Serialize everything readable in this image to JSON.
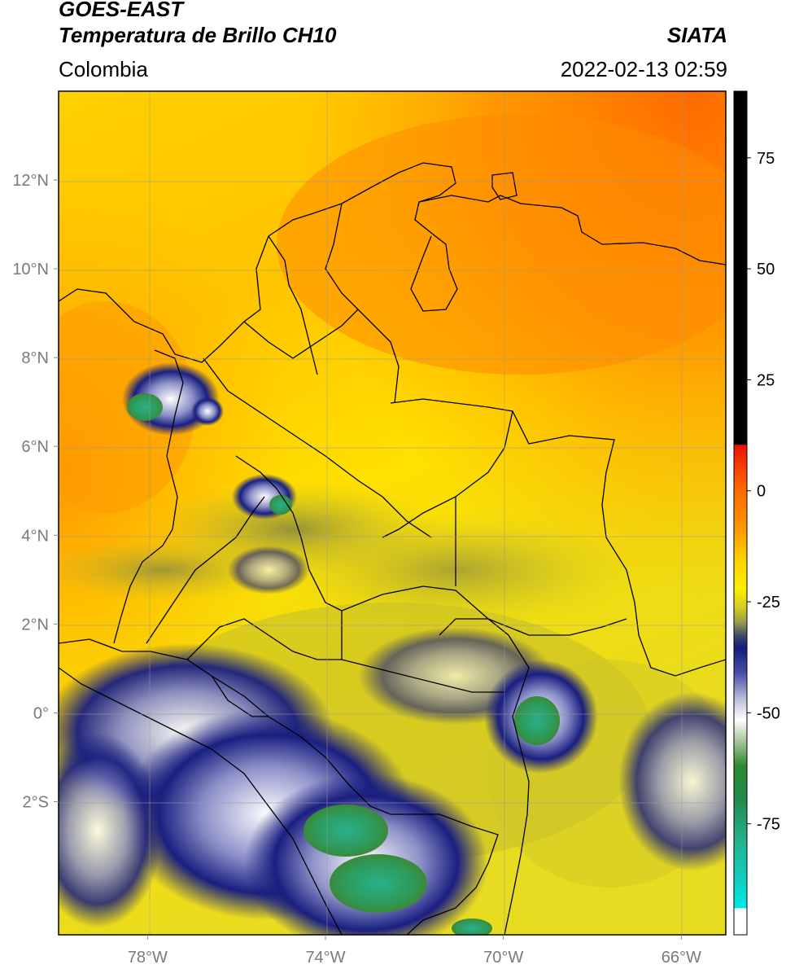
{
  "header": {
    "satellite": "GOES-EAST",
    "product": "Temperatura de Brillo CH10",
    "organization": "SIATA",
    "region": "Colombia",
    "timestamp": "2022-02-13 02:59"
  },
  "map": {
    "lon_range": [
      -80,
      -65
    ],
    "lat_range": [
      -5.0,
      14.0
    ],
    "lon_ticks": [
      {
        "value": -78,
        "label": "78°W"
      },
      {
        "value": -74,
        "label": "74°W"
      },
      {
        "value": -70,
        "label": "70°W"
      },
      {
        "value": -66,
        "label": "66°W"
      }
    ],
    "lat_ticks": [
      {
        "value": 12,
        "label": "12°N"
      },
      {
        "value": 10,
        "label": "10°N"
      },
      {
        "value": 8,
        "label": "8°N"
      },
      {
        "value": 6,
        "label": "6°N"
      },
      {
        "value": 4,
        "label": "4°N"
      },
      {
        "value": 2,
        "label": "2°N"
      },
      {
        "value": 0,
        "label": "0°"
      },
      {
        "value": -2,
        "label": "2°S"
      }
    ],
    "grid": true
  },
  "colorbar": {
    "range": [
      -100,
      90
    ],
    "ticks": [
      {
        "value": 75,
        "label": "75"
      },
      {
        "value": 50,
        "label": "50"
      },
      {
        "value": 25,
        "label": "25"
      },
      {
        "value": 0,
        "label": "0"
      },
      {
        "value": -25,
        "label": "-25"
      },
      {
        "value": -50,
        "label": "-50"
      },
      {
        "value": -75,
        "label": "-75"
      }
    ],
    "colors": {
      "black": "#000000",
      "red": "#ee1100",
      "orange": "#ff8800",
      "yellow": "#ffe800",
      "olive": "#b8b030",
      "navy": "#141a7a",
      "white": "#ffffff",
      "green": "#2e8a2e",
      "teal": "#22b490",
      "cyan": "#00e8e8"
    }
  }
}
